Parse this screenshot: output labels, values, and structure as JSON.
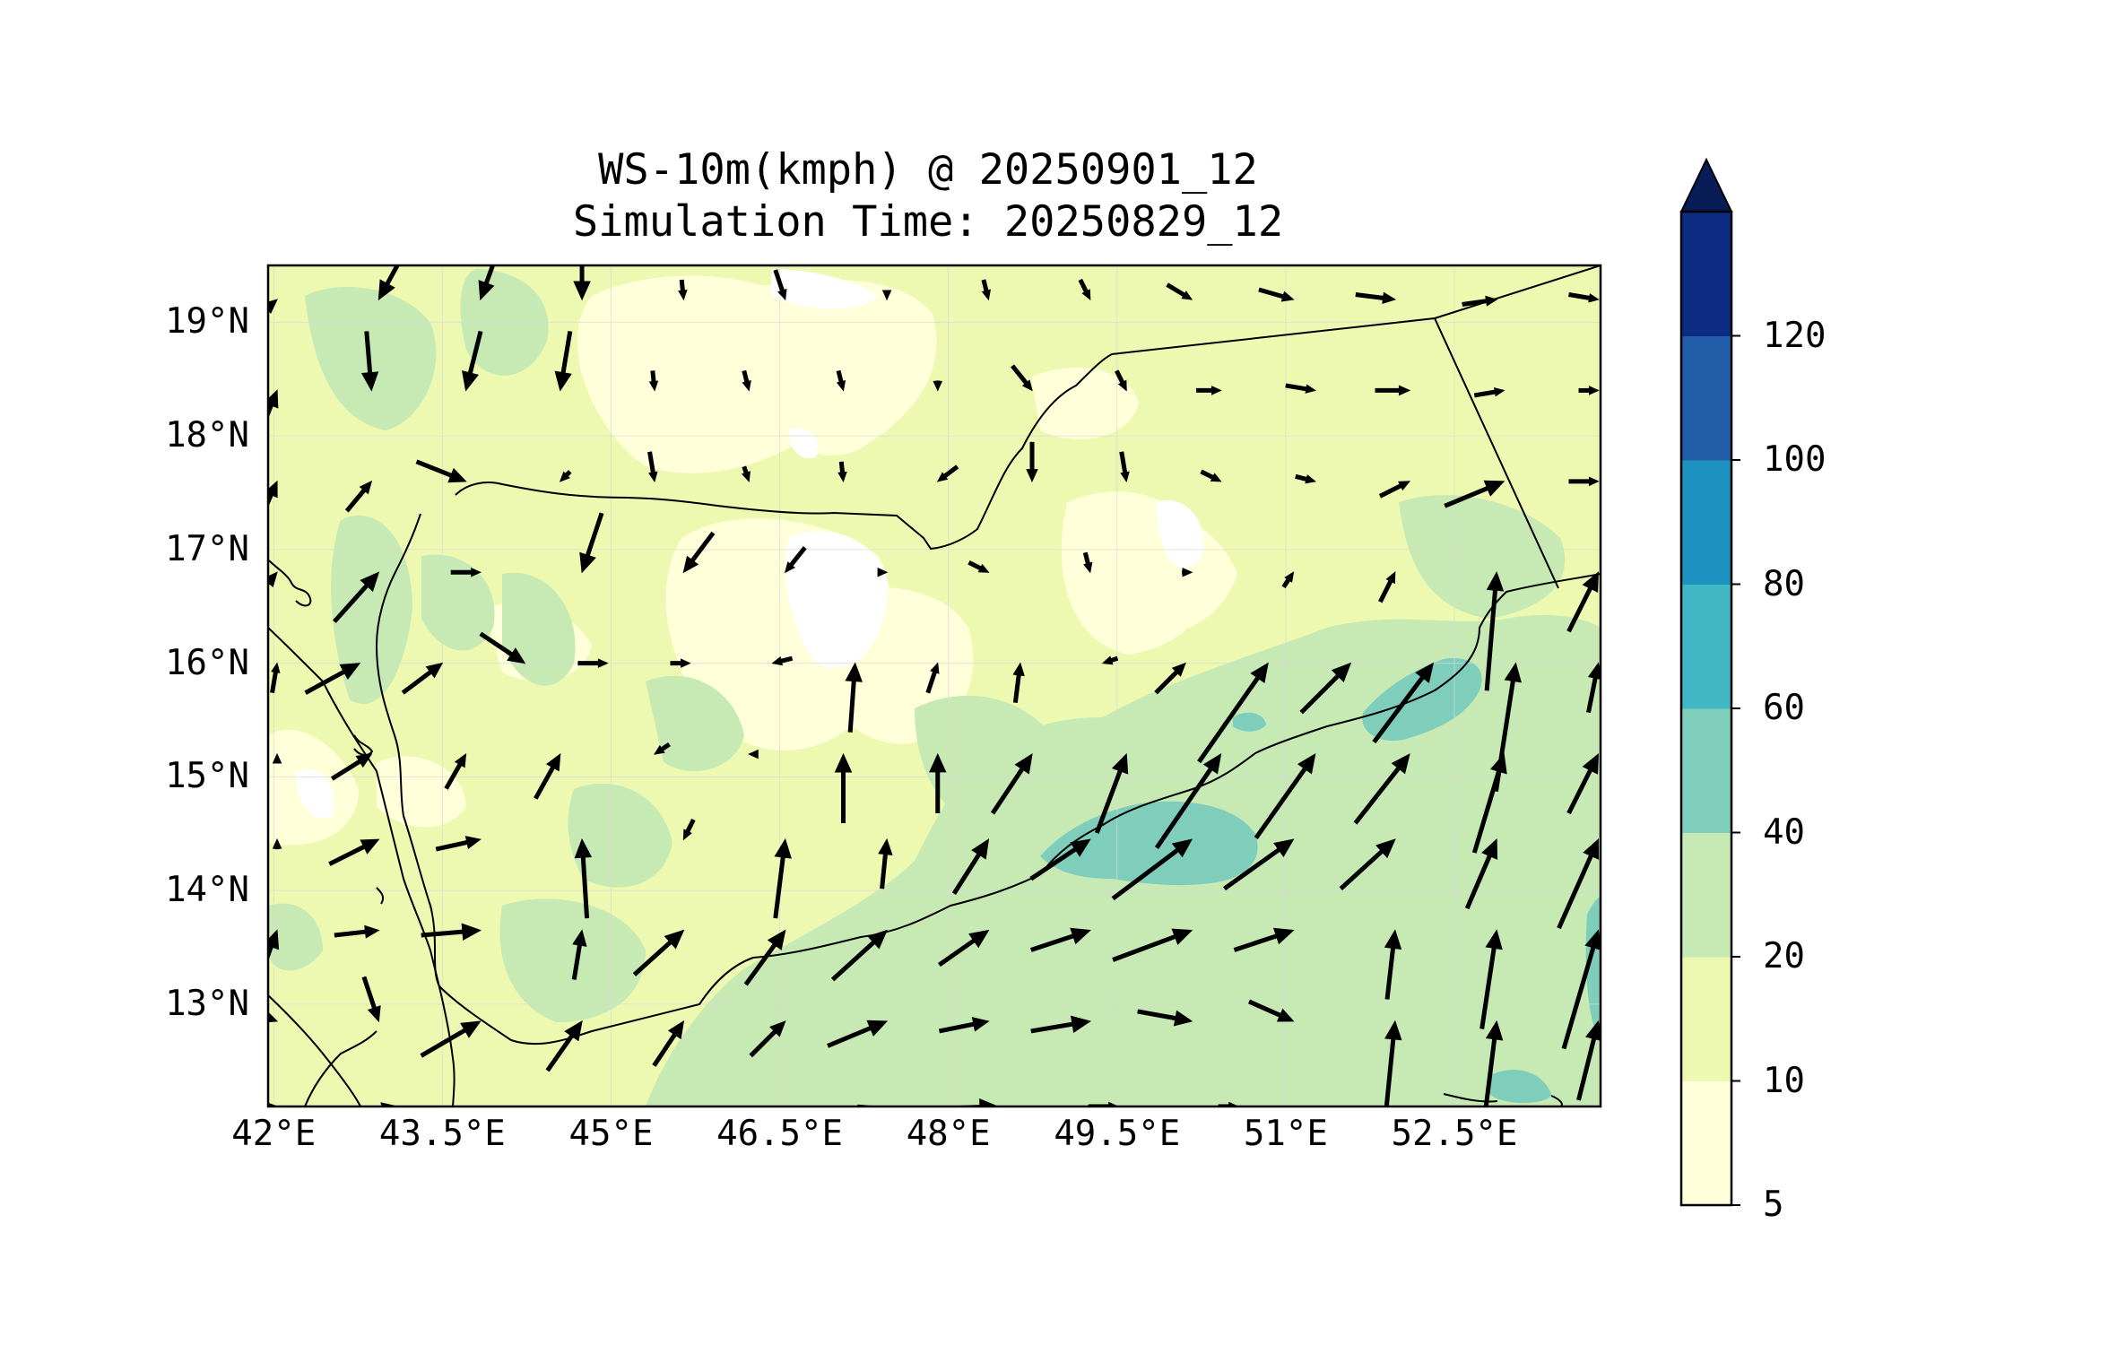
{
  "title": {
    "line1": "WS-10m(kmph) @ 20250901_12",
    "line2": "Simulation Time: 20250829_12"
  },
  "map": {
    "lon_range": [
      41.95,
      53.8
    ],
    "lat_range": [
      12.1,
      19.5
    ],
    "lat_ticks": [
      {
        "value": 19,
        "label": "19°N"
      },
      {
        "value": 18,
        "label": "18°N"
      },
      {
        "value": 17,
        "label": "17°N"
      },
      {
        "value": 16,
        "label": "16°N"
      },
      {
        "value": 15,
        "label": "15°N"
      },
      {
        "value": 14,
        "label": "14°N"
      },
      {
        "value": 13,
        "label": "13°N"
      }
    ],
    "lon_ticks": [
      {
        "value": 42,
        "label": "42°E"
      },
      {
        "value": 43.5,
        "label": "43.5°E"
      },
      {
        "value": 45,
        "label": "45°E"
      },
      {
        "value": 46.5,
        "label": "46.5°E"
      },
      {
        "value": 48,
        "label": "48°E"
      },
      {
        "value": 49.5,
        "label": "49.5°E"
      },
      {
        "value": 51,
        "label": "51°E"
      },
      {
        "value": 52.5,
        "label": "52.5°E"
      }
    ],
    "gridlines": true,
    "vectors": "wind at 10 m, black arrows"
  },
  "colorbar": {
    "levels": [
      5,
      10,
      20,
      40,
      60,
      80,
      100,
      120
    ],
    "labels": [
      "5",
      "10",
      "20",
      "40",
      "60",
      "80",
      "100",
      "120"
    ],
    "colors": [
      "#ffffd9",
      "#edf8b1",
      "#c7e9b4",
      "#7fcdbb",
      "#41b6c4",
      "#1d91c0",
      "#225ea8",
      "#0c2c84"
    ],
    "extend": "max",
    "extend_color": "#081d58"
  }
}
